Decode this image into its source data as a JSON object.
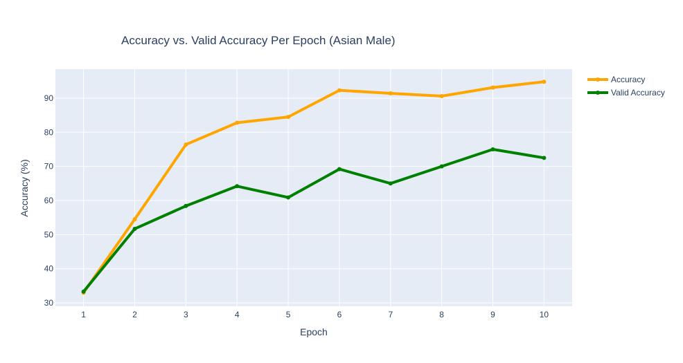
{
  "chart_data": {
    "type": "line",
    "title": "Accuracy vs. Valid Accuracy Per Epoch (Asian Male)",
    "xlabel": "Epoch",
    "ylabel": "Accuracy (%)",
    "x": [
      1,
      2,
      3,
      4,
      5,
      6,
      7,
      8,
      9,
      10
    ],
    "xlim": [
      0.45,
      10.55
    ],
    "ylim": [
      29.0,
      98.5
    ],
    "yticks": [
      30,
      40,
      50,
      60,
      70,
      80,
      90
    ],
    "grid": true,
    "legend_position": "top-right",
    "plot_bgcolor": "#e5ecf6",
    "series": [
      {
        "name": "Accuracy",
        "color": "#ffa500",
        "values": [
          33.0,
          54.5,
          76.4,
          82.8,
          84.5,
          92.3,
          91.4,
          90.6,
          93.1,
          94.8
        ]
      },
      {
        "name": "Valid Accuracy",
        "color": "#008000",
        "values": [
          33.3,
          51.7,
          58.4,
          64.2,
          60.9,
          69.2,
          65.0,
          70.0,
          75.0,
          72.5
        ]
      }
    ]
  }
}
